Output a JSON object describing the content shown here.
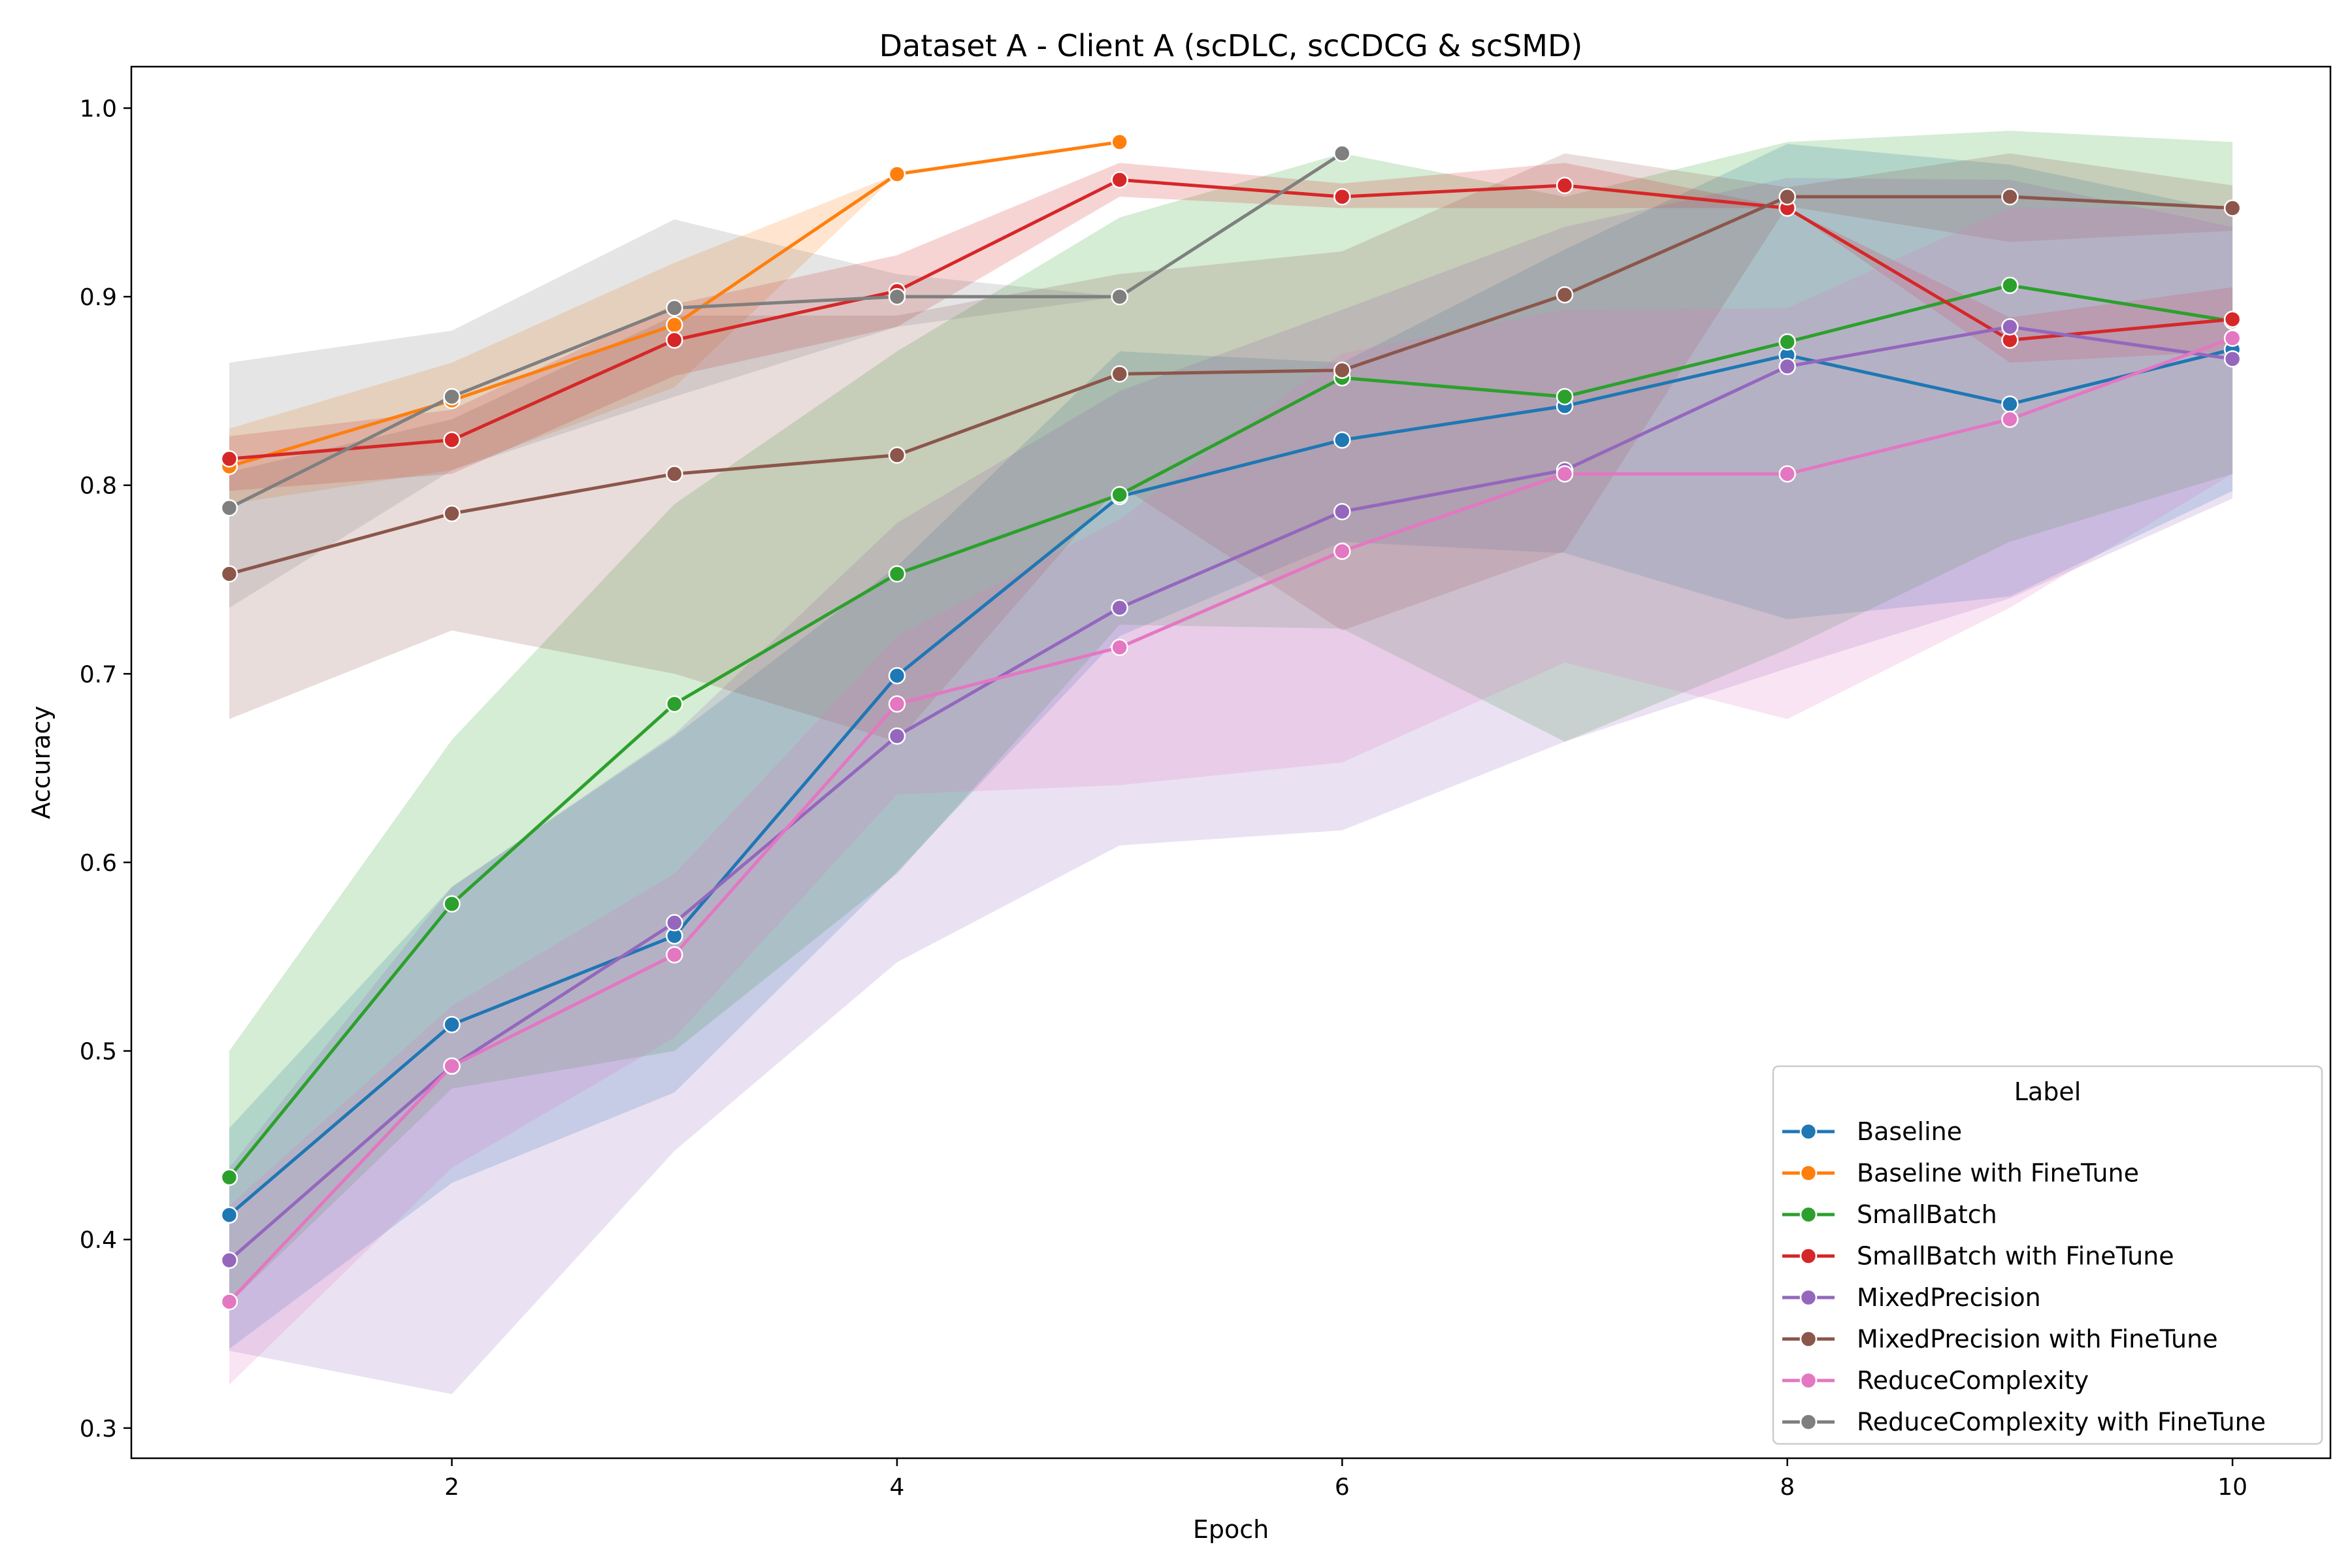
{
  "chart_data": {
    "type": "line",
    "title": "Dataset A - Client A (scDLC, scCDCG & scSMD)",
    "xlabel": "Epoch",
    "ylabel": "Accuracy",
    "xlim": [
      0.56,
      10.44
    ],
    "ylim": [
      0.284,
      1.022
    ],
    "xticks": [
      2,
      4,
      6,
      8,
      10
    ],
    "yticks": [
      0.3,
      0.4,
      0.5,
      0.6,
      0.7,
      0.8,
      0.9,
      1.0
    ],
    "grid": false,
    "legend": {
      "title": "Label",
      "placement": "lower-right"
    },
    "series": [
      {
        "name": "Baseline",
        "color": "#1f77b4",
        "x": [
          1,
          2,
          3,
          4,
          5,
          6,
          7,
          8,
          9,
          10
        ],
        "y": [
          0.413,
          0.514,
          0.561,
          0.699,
          0.794,
          0.824,
          0.842,
          0.869,
          0.843,
          0.872
        ],
        "lower": [
          0.342,
          0.43,
          0.478,
          0.595,
          0.72,
          0.77,
          0.764,
          0.729,
          0.741,
          0.797
        ],
        "upper": [
          0.459,
          0.587,
          0.667,
          0.757,
          0.871,
          0.865,
          0.925,
          0.981,
          0.97,
          0.945
        ]
      },
      {
        "name": "Baseline with FineTune",
        "color": "#ff7f0e",
        "x": [
          1,
          2,
          3,
          4,
          5
        ],
        "y": [
          0.81,
          0.845,
          0.885,
          0.965,
          0.982
        ],
        "lower": [
          0.79,
          0.808,
          0.852,
          0.965,
          0.982
        ],
        "upper": [
          0.83,
          0.865,
          0.918,
          0.965,
          0.982
        ]
      },
      {
        "name": "SmallBatch",
        "color": "#2ca02c",
        "x": [
          1,
          2,
          3,
          4,
          5,
          6,
          7,
          8,
          9,
          10
        ],
        "y": [
          0.433,
          0.578,
          0.684,
          0.753,
          0.795,
          0.857,
          0.847,
          0.876,
          0.906,
          0.887
        ],
        "lower": [
          0.366,
          0.48,
          0.5,
          0.594,
          0.726,
          0.724,
          0.664,
          0.713,
          0.77,
          0.806
        ],
        "upper": [
          0.5,
          0.665,
          0.79,
          0.871,
          0.942,
          0.976,
          0.953,
          0.982,
          0.988,
          0.982
        ]
      },
      {
        "name": "SmallBatch with FineTune",
        "color": "#d62728",
        "x": [
          1,
          2,
          3,
          4,
          5,
          6,
          7,
          8,
          9,
          10
        ],
        "y": [
          0.814,
          0.824,
          0.877,
          0.903,
          0.962,
          0.953,
          0.959,
          0.947,
          0.877,
          0.888
        ],
        "lower": [
          0.797,
          0.806,
          0.858,
          0.884,
          0.953,
          0.947,
          0.947,
          0.947,
          0.865,
          0.871
        ],
        "upper": [
          0.826,
          0.84,
          0.896,
          0.922,
          0.971,
          0.96,
          0.971,
          0.947,
          0.889,
          0.905
        ]
      },
      {
        "name": "MixedPrecision",
        "color": "#9467bd",
        "x": [
          1,
          2,
          3,
          4,
          5,
          6,
          7,
          8,
          9,
          10
        ],
        "y": [
          0.389,
          0.492,
          0.568,
          0.667,
          0.735,
          0.786,
          0.808,
          0.863,
          0.884,
          0.867
        ],
        "lower": [
          0.341,
          0.318,
          0.447,
          0.547,
          0.609,
          0.617,
          0.664,
          0.703,
          0.74,
          0.793
        ],
        "upper": [
          0.438,
          0.587,
          0.668,
          0.78,
          0.85,
          0.893,
          0.937,
          0.963,
          0.962,
          0.937
        ]
      },
      {
        "name": "MixedPrecision with FineTune",
        "color": "#8c564b",
        "x": [
          1,
          2,
          3,
          4,
          5,
          6,
          7,
          8,
          9,
          10
        ],
        "y": [
          0.753,
          0.785,
          0.806,
          0.816,
          0.859,
          0.861,
          0.901,
          0.953,
          0.953,
          0.947
        ],
        "lower": [
          0.676,
          0.723,
          0.7,
          0.664,
          0.8,
          0.723,
          0.765,
          0.948,
          0.929,
          0.935
        ],
        "upper": [
          0.807,
          0.835,
          0.89,
          0.89,
          0.912,
          0.924,
          0.976,
          0.958,
          0.976,
          0.959
        ]
      },
      {
        "name": "ReduceComplexity",
        "color": "#e377c2",
        "x": [
          1,
          2,
          3,
          4,
          5,
          6,
          7,
          8,
          9,
          10
        ],
        "y": [
          0.367,
          0.492,
          0.551,
          0.684,
          0.714,
          0.765,
          0.806,
          0.806,
          0.835,
          0.878
        ],
        "lower": [
          0.323,
          0.438,
          0.507,
          0.636,
          0.641,
          0.653,
          0.706,
          0.676,
          0.735,
          0.806
        ],
        "upper": [
          0.418,
          0.524,
          0.594,
          0.72,
          0.782,
          0.87,
          0.893,
          0.894,
          0.947,
          0.947
        ]
      },
      {
        "name": "ReduceComplexity with FineTune",
        "color": "#7f7f7f",
        "x": [
          1,
          2,
          3,
          4,
          5,
          6
        ],
        "y": [
          0.788,
          0.847,
          0.894,
          0.9,
          0.9,
          0.976
        ],
        "lower": [
          0.735,
          0.808,
          0.847,
          0.884,
          0.9,
          0.976
        ],
        "upper": [
          0.865,
          0.882,
          0.941,
          0.912,
          0.9,
          0.976
        ]
      }
    ]
  }
}
